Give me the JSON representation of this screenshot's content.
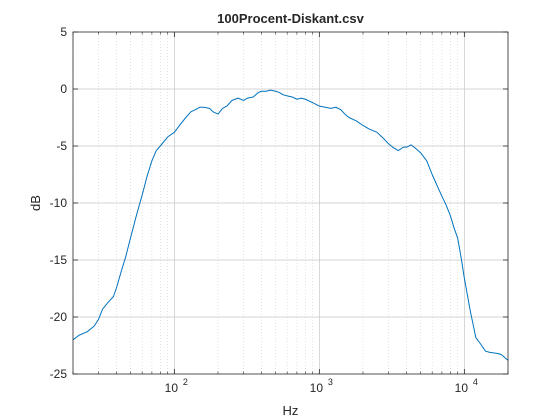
{
  "chart_data": {
    "type": "line",
    "title": "100Procent-Diskant.csv",
    "xlabel": "Hz",
    "ylabel": "dB",
    "xscale": "log",
    "xlim": [
      20,
      20000
    ],
    "ylim": [
      -25,
      5
    ],
    "grid": true,
    "minor_grid": true,
    "line_color": "#0072BD",
    "x_ticks": [
      100,
      1000,
      10000
    ],
    "x_tick_labels": [
      {
        "base": "10",
        "exp": "2"
      },
      {
        "base": "10",
        "exp": "3"
      },
      {
        "base": "10",
        "exp": "4"
      }
    ],
    "y_ticks": [
      5,
      0,
      -5,
      -10,
      -15,
      -20,
      -25
    ],
    "y_tick_labels": [
      "5",
      "0",
      "-5",
      "-10",
      "-15",
      "-20",
      "-25"
    ],
    "series": [
      {
        "x": [
          20,
          22,
          25,
          28,
          30,
          32,
          35,
          38,
          40,
          43,
          46,
          50,
          55,
          60,
          65,
          70,
          75,
          80,
          90,
          100,
          110,
          120,
          130,
          140,
          150,
          160,
          175,
          185,
          200,
          215,
          230,
          250,
          275,
          300,
          320,
          350,
          380,
          400,
          430,
          460,
          500,
          530,
          560,
          600,
          650,
          700,
          750,
          800,
          900,
          1000,
          1100,
          1200,
          1300,
          1400,
          1500,
          1600,
          1800,
          2000,
          2200,
          2500,
          2800,
          3000,
          3200,
          3500,
          3800,
          4000,
          4300,
          4600,
          5000,
          5500,
          6000,
          6500,
          7000,
          7500,
          8000,
          8500,
          9000,
          9500,
          10000,
          11000,
          12000,
          13000,
          14000,
          15000,
          17000,
          18000,
          20000
        ],
        "y": [
          -22.0,
          -21.6,
          -21.3,
          -20.8,
          -20.2,
          -19.3,
          -18.7,
          -18.2,
          -17.4,
          -16.0,
          -14.8,
          -13.0,
          -11.0,
          -9.3,
          -7.6,
          -6.3,
          -5.4,
          -5.0,
          -4.2,
          -3.8,
          -3.1,
          -2.5,
          -2.0,
          -1.8,
          -1.6,
          -1.6,
          -1.7,
          -2.0,
          -2.2,
          -1.7,
          -1.5,
          -1.0,
          -0.8,
          -1.0,
          -0.8,
          -0.7,
          -0.3,
          -0.2,
          -0.2,
          -0.1,
          -0.2,
          -0.3,
          -0.5,
          -0.6,
          -0.7,
          -0.9,
          -0.8,
          -0.9,
          -1.2,
          -1.5,
          -1.6,
          -1.7,
          -1.6,
          -1.8,
          -2.2,
          -2.5,
          -2.8,
          -3.2,
          -3.5,
          -3.8,
          -4.4,
          -4.8,
          -5.1,
          -5.4,
          -5.1,
          -5.1,
          -4.9,
          -5.2,
          -5.6,
          -6.3,
          -7.5,
          -8.5,
          -9.4,
          -10.2,
          -11.1,
          -12.2,
          -13.1,
          -14.8,
          -16.6,
          -19.5,
          -21.8,
          -22.4,
          -23.0,
          -23.1,
          -23.2,
          -23.3,
          -23.8
        ]
      }
    ]
  }
}
